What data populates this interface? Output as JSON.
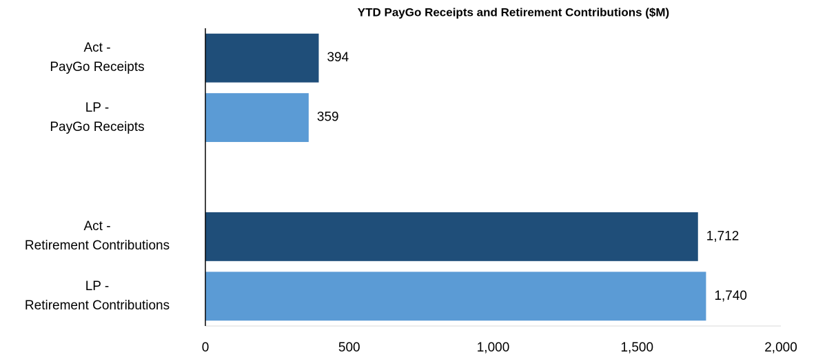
{
  "chart_data": {
    "type": "barh",
    "title": "YTD PayGo Receipts and Retirement Contributions ($M)",
    "categories": [
      "Act -\nPayGo Receipts",
      "LP -\nPayGo Receipts",
      null,
      "Act -\nRetirement Contributions",
      "LP -\nRetirement Contributions"
    ],
    "values": [
      394,
      359,
      null,
      1712,
      1740
    ],
    "value_labels": [
      "394",
      "359",
      null,
      "1,712",
      "1,740"
    ],
    "colors": [
      "#1f4e79",
      "#5b9bd5",
      null,
      "#1f4e79",
      "#5b9bd5"
    ],
    "xlim": [
      0,
      2000
    ],
    "xticks": [
      0,
      500,
      {
        "value": 1000,
        "label": "1,000"
      },
      {
        "value": 1500,
        "label": "1,500"
      },
      {
        "value": 2000,
        "label": "2,000"
      }
    ],
    "grid": false
  }
}
